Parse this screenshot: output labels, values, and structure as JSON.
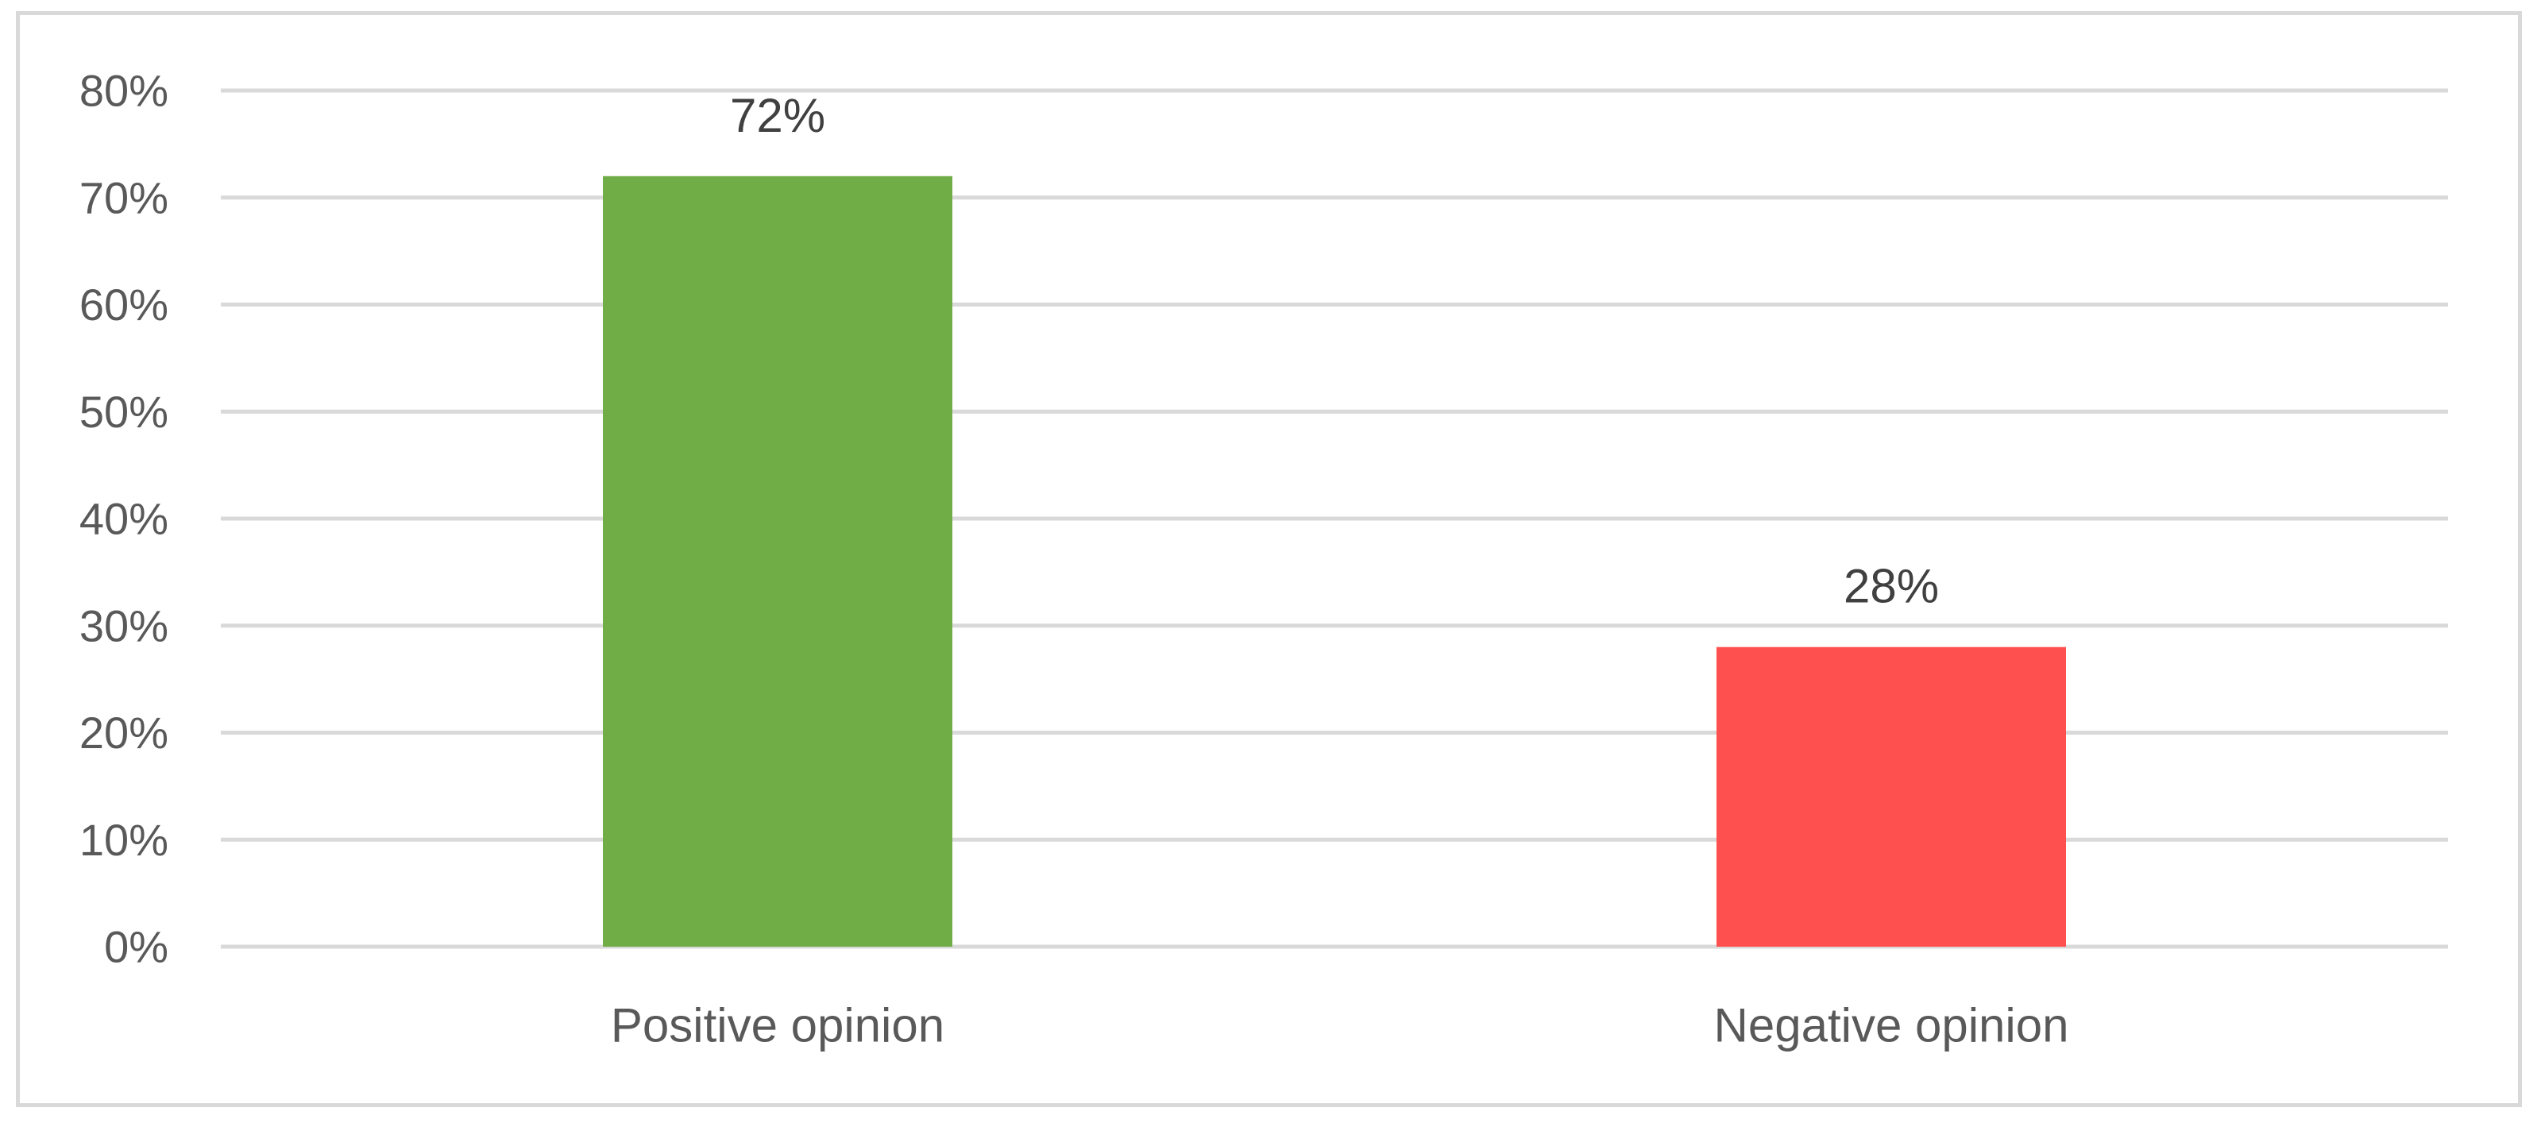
{
  "chart_data": {
    "type": "bar",
    "title": "",
    "xlabel": "",
    "ylabel": "",
    "categories": [
      "Positive opinion",
      "Negative opinion"
    ],
    "values": [
      72,
      28
    ],
    "value_labels": [
      "72%",
      "28%"
    ],
    "bar_colors": [
      "#70ad47",
      "#ff5050"
    ],
    "ylim": [
      0,
      80
    ],
    "yticks": [
      0,
      10,
      20,
      30,
      40,
      50,
      60,
      70,
      80
    ],
    "ytick_labels": [
      "0%",
      "10%",
      "20%",
      "30%",
      "40%",
      "50%",
      "60%",
      "70%",
      "80%"
    ],
    "grid": true,
    "grid_color": "#d9d9d9",
    "legend": "none"
  }
}
